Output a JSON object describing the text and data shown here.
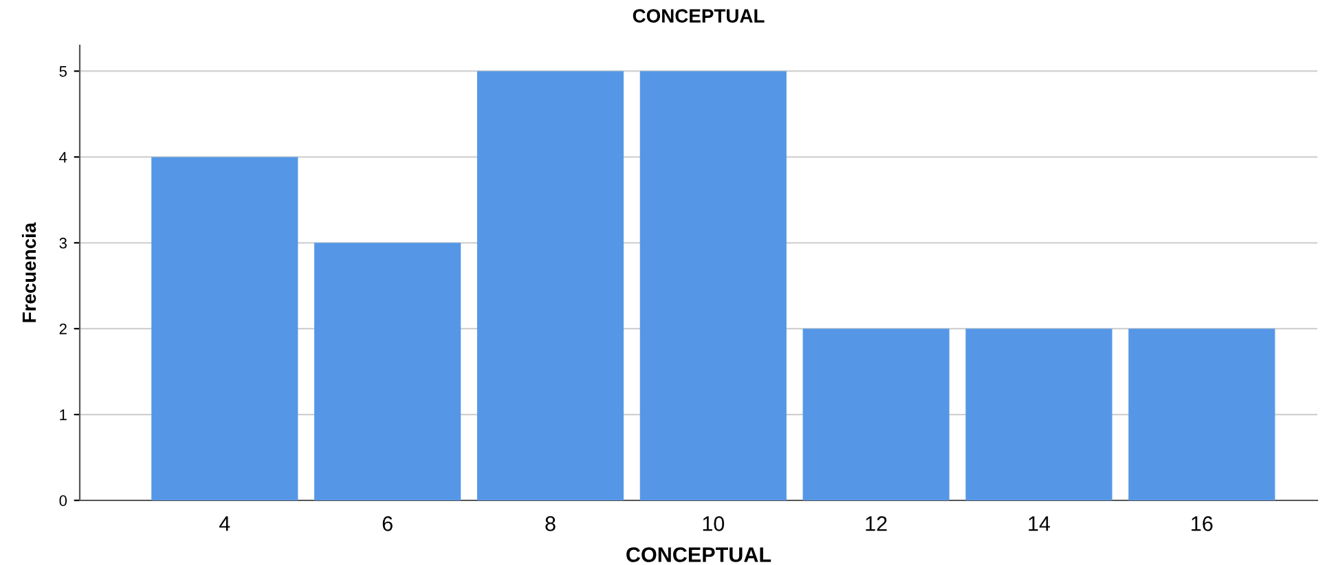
{
  "chart_data": {
    "type": "bar",
    "title": "CONCEPTUAL",
    "xlabel": "CONCEPTUAL",
    "ylabel": "Frecuencia",
    "categories": [
      "4",
      "6",
      "8",
      "10",
      "12",
      "14",
      "16"
    ],
    "values": [
      4,
      3,
      5,
      5,
      2,
      2,
      2
    ],
    "color": "#5597e6",
    "ylim": [
      0,
      5.3
    ],
    "yticks": [
      0,
      1,
      2,
      3,
      4,
      5
    ],
    "grid": "y",
    "legend": false
  }
}
